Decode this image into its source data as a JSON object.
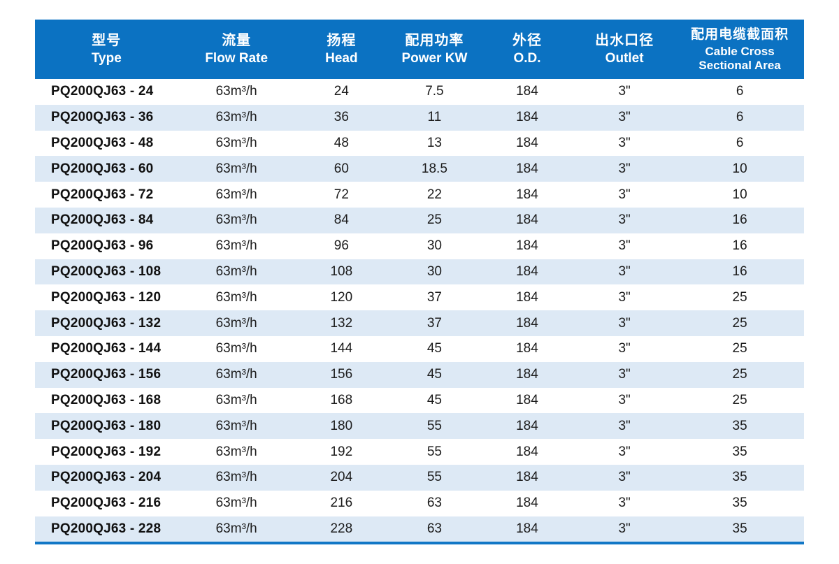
{
  "colors": {
    "header_bg": "#0b72c2",
    "header_text": "#ffffff",
    "stripe_bg": "#dde9f5",
    "row_bg": "#ffffff",
    "bottom_border": "#1177c6",
    "body_text": "#1c1c1c"
  },
  "table": {
    "columns": [
      {
        "zh": "型号",
        "en": "Type"
      },
      {
        "zh": "流量",
        "en": "Flow Rate"
      },
      {
        "zh": "扬程",
        "en": "Head"
      },
      {
        "zh": "配用功率",
        "en": "Power KW"
      },
      {
        "zh": "外径",
        "en": "O.D."
      },
      {
        "zh": "出水口径",
        "en": "Outlet"
      },
      {
        "zh": "配用电缆截面积",
        "en": "Cable Cross\nSectional Area"
      }
    ],
    "rows": [
      [
        "PQ200QJ63 - 24",
        "63m³/h",
        "24",
        "7.5",
        "184",
        "3\"",
        "6"
      ],
      [
        "PQ200QJ63 - 36",
        "63m³/h",
        "36",
        "11",
        "184",
        "3\"",
        "6"
      ],
      [
        "PQ200QJ63 - 48",
        "63m³/h",
        "48",
        "13",
        "184",
        "3\"",
        "6"
      ],
      [
        "PQ200QJ63 - 60",
        "63m³/h",
        "60",
        "18.5",
        "184",
        "3\"",
        "10"
      ],
      [
        "PQ200QJ63 - 72",
        "63m³/h",
        "72",
        "22",
        "184",
        "3\"",
        "10"
      ],
      [
        "PQ200QJ63 - 84",
        "63m³/h",
        "84",
        "25",
        "184",
        "3\"",
        "16"
      ],
      [
        "PQ200QJ63 - 96",
        "63m³/h",
        "96",
        "30",
        "184",
        "3\"",
        "16"
      ],
      [
        "PQ200QJ63 - 108",
        "63m³/h",
        "108",
        "30",
        "184",
        "3\"",
        "16"
      ],
      [
        "PQ200QJ63 - 120",
        "63m³/h",
        "120",
        "37",
        "184",
        "3\"",
        "25"
      ],
      [
        "PQ200QJ63 - 132",
        "63m³/h",
        "132",
        "37",
        "184",
        "3\"",
        "25"
      ],
      [
        "PQ200QJ63 - 144",
        "63m³/h",
        "144",
        "45",
        "184",
        "3\"",
        "25"
      ],
      [
        "PQ200QJ63 - 156",
        "63m³/h",
        "156",
        "45",
        "184",
        "3\"",
        "25"
      ],
      [
        "PQ200QJ63 - 168",
        "63m³/h",
        "168",
        "45",
        "184",
        "3\"",
        "25"
      ],
      [
        "PQ200QJ63 - 180",
        "63m³/h",
        "180",
        "55",
        "184",
        "3\"",
        "35"
      ],
      [
        "PQ200QJ63 - 192",
        "63m³/h",
        "192",
        "55",
        "184",
        "3\"",
        "35"
      ],
      [
        "PQ200QJ63 - 204",
        "63m³/h",
        "204",
        "55",
        "184",
        "3\"",
        "35"
      ],
      [
        "PQ200QJ63 - 216",
        "63m³/h",
        "216",
        "63",
        "184",
        "3\"",
        "35"
      ],
      [
        "PQ200QJ63 - 228",
        "63m³/h",
        "228",
        "63",
        "184",
        "3\"",
        "35"
      ]
    ]
  }
}
